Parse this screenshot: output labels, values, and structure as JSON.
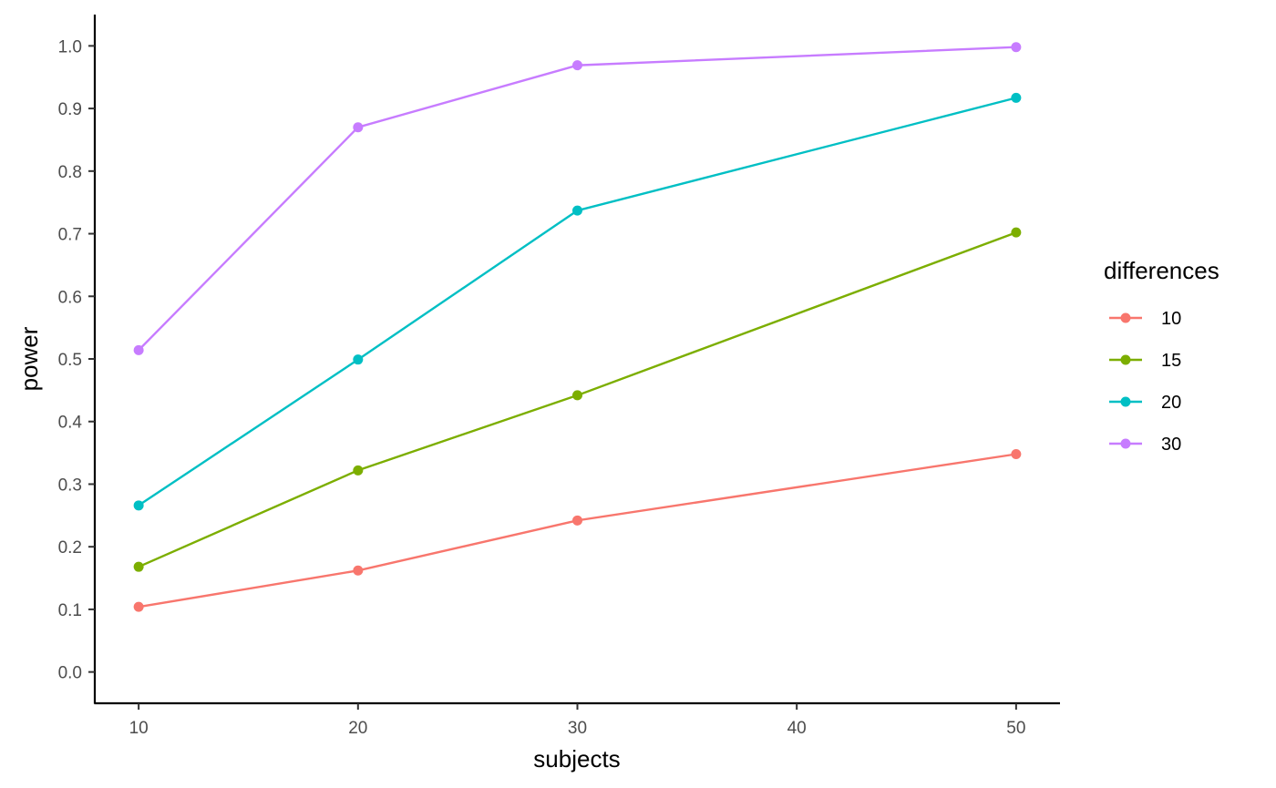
{
  "chart_data": {
    "type": "line",
    "title": "",
    "xlabel": "subjects",
    "ylabel": "power",
    "x": [
      10,
      20,
      30,
      50
    ],
    "x_ticks": [
      "10",
      "20",
      "30",
      "40",
      "50"
    ],
    "y_ticks": [
      "0.0",
      "0.1",
      "0.2",
      "0.3",
      "0.4",
      "0.5",
      "0.6",
      "0.7",
      "0.8",
      "0.9",
      "1.0"
    ],
    "xlim": [
      8,
      52
    ],
    "ylim": [
      -0.05,
      1.05
    ],
    "grid": false,
    "legend": {
      "title": "differences",
      "placement": "right"
    },
    "series": [
      {
        "name": "10",
        "color": "#F8766D",
        "values": [
          0.104,
          0.162,
          0.242,
          0.348
        ]
      },
      {
        "name": "15",
        "color": "#7CAE00",
        "values": [
          0.168,
          0.322,
          0.442,
          0.702
        ]
      },
      {
        "name": "20",
        "color": "#00BFC4",
        "values": [
          0.266,
          0.499,
          0.737,
          0.917
        ]
      },
      {
        "name": "30",
        "color": "#C77CFF",
        "values": [
          0.514,
          0.87,
          0.969,
          0.998
        ]
      }
    ]
  }
}
